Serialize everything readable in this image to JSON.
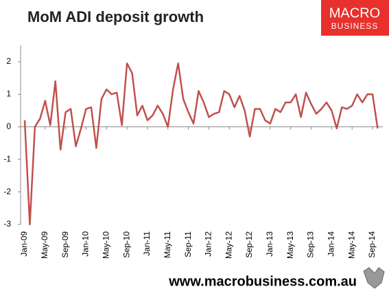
{
  "chart_data": {
    "type": "line",
    "title": "MoM ADI deposit growth",
    "categories": [
      "Jan-09",
      null,
      null,
      null,
      "May-09",
      null,
      null,
      null,
      "Sep-09",
      null,
      null,
      null,
      "Jan-10",
      null,
      null,
      null,
      "May-10",
      null,
      null,
      null,
      "Sep-10",
      null,
      null,
      null,
      "Jan-11",
      null,
      null,
      null,
      "May-11",
      null,
      null,
      null,
      "Sep-11",
      null,
      null,
      null,
      "Jan-12",
      null,
      null,
      null,
      "May-12",
      null,
      null,
      null,
      "Sep-12",
      null,
      null,
      null,
      "Jan-13",
      null,
      null,
      null,
      "May-13",
      null,
      null,
      null,
      "Sep-13",
      null,
      null,
      null,
      "Jan-14",
      null,
      null,
      null,
      "May-14",
      null,
      null,
      null,
      "Sep-14",
      null
    ],
    "series": [
      {
        "name": "MoM ADI deposit growth",
        "color": "#c0504d",
        "values": [
          0.2,
          -3.0,
          0.0,
          0.25,
          0.8,
          0.05,
          1.4,
          -0.7,
          0.45,
          0.55,
          -0.6,
          -0.05,
          0.55,
          0.6,
          -0.65,
          0.85,
          1.15,
          1.0,
          1.05,
          0.05,
          1.95,
          1.65,
          0.35,
          0.65,
          0.2,
          0.35,
          0.65,
          0.4,
          0.0,
          1.15,
          1.95,
          0.85,
          0.45,
          0.1,
          1.1,
          0.75,
          0.3,
          0.4,
          0.45,
          1.1,
          1.0,
          0.6,
          0.95,
          0.5,
          -0.3,
          0.55,
          0.55,
          0.2,
          0.1,
          0.55,
          0.45,
          0.75,
          0.75,
          1.0,
          0.3,
          1.05,
          0.7,
          0.4,
          0.55,
          0.75,
          0.5,
          -0.05,
          0.6,
          0.55,
          0.65,
          1.0,
          0.75,
          1.0,
          1.0,
          -0.05
        ]
      }
    ],
    "ylim": [
      -3,
      2.5
    ],
    "yticks": [
      2,
      1,
      0,
      -1,
      -2,
      -3
    ],
    "grid": false
  },
  "logo": {
    "line1": "MACRO",
    "line2": "BUSINESS"
  },
  "footer": "www.macrobusiness.com.au"
}
